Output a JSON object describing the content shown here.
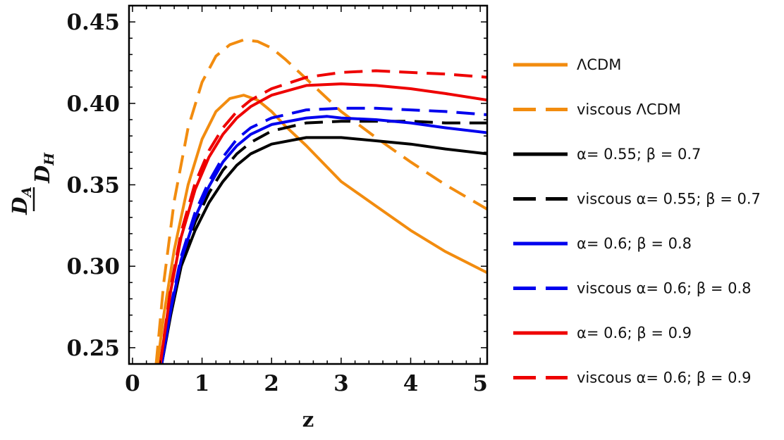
{
  "chart_data": {
    "type": "line",
    "xlabel": "z",
    "ylabel_numerator": "D",
    "ylabel_numerator_sub": "A",
    "ylabel_denominator": "D",
    "ylabel_denominator_sub": "H",
    "xlim": [
      -0.05,
      5.1
    ],
    "ylim": [
      0.24,
      0.46
    ],
    "x_ticks": [
      "0",
      "1",
      "2",
      "3",
      "4",
      "5"
    ],
    "y_ticks": [
      "0.25",
      "0.30",
      "0.35",
      "0.40",
      "0.45"
    ],
    "legend_position": "right",
    "grid": false,
    "series": [
      {
        "name": "ΛCDM",
        "color": "#f28c0f",
        "dash": "solid",
        "x": [
          0.36,
          0.45,
          0.6,
          0.8,
          1.0,
          1.2,
          1.4,
          1.6,
          1.8,
          2.0,
          2.2,
          2.5,
          3.0,
          3.5,
          4.0,
          4.5,
          5.1
        ],
        "y": [
          0.24,
          0.27,
          0.31,
          0.35,
          0.378,
          0.395,
          0.403,
          0.405,
          0.402,
          0.395,
          0.386,
          0.374,
          0.352,
          0.337,
          0.322,
          0.309,
          0.296
        ]
      },
      {
        "name": "viscous ΛCDM",
        "color": "#f28c0f",
        "dash": "dashed",
        "x": [
          0.34,
          0.45,
          0.6,
          0.8,
          1.0,
          1.2,
          1.4,
          1.6,
          1.8,
          2.0,
          2.2,
          2.5,
          3.0,
          3.5,
          4.0,
          4.5,
          5.1
        ],
        "y": [
          0.24,
          0.29,
          0.34,
          0.385,
          0.413,
          0.429,
          0.436,
          0.439,
          0.438,
          0.434,
          0.427,
          0.415,
          0.395,
          0.379,
          0.364,
          0.35,
          0.335
        ]
      },
      {
        "name": "α= 0.55; β = 0.7",
        "color": "#000000",
        "dash": "solid",
        "x": [
          0.42,
          0.55,
          0.7,
          0.9,
          1.1,
          1.3,
          1.5,
          1.7,
          2.0,
          2.5,
          3.0,
          3.5,
          4.0,
          4.5,
          5.1
        ],
        "y": [
          0.24,
          0.27,
          0.3,
          0.322,
          0.339,
          0.352,
          0.362,
          0.369,
          0.375,
          0.379,
          0.379,
          0.377,
          0.375,
          0.372,
          0.369
        ]
      },
      {
        "name": "viscous α= 0.55; β = 0.7",
        "color": "#000000",
        "dash": "dashed",
        "x": [
          0.42,
          0.55,
          0.7,
          0.9,
          1.1,
          1.3,
          1.5,
          1.7,
          2.0,
          2.5,
          3.0,
          3.5,
          4.0,
          4.5,
          5.1
        ],
        "y": [
          0.24,
          0.272,
          0.302,
          0.327,
          0.345,
          0.359,
          0.369,
          0.376,
          0.383,
          0.388,
          0.389,
          0.389,
          0.389,
          0.388,
          0.388
        ]
      },
      {
        "name": "α= 0.6; β = 0.8",
        "color": "#0000ee",
        "dash": "solid",
        "x": [
          0.42,
          0.55,
          0.7,
          0.9,
          1.1,
          1.3,
          1.5,
          1.7,
          2.0,
          2.5,
          2.8,
          3.0,
          3.5,
          4.0,
          4.5,
          5.1
        ],
        "y": [
          0.24,
          0.273,
          0.304,
          0.33,
          0.349,
          0.364,
          0.374,
          0.381,
          0.387,
          0.391,
          0.392,
          0.391,
          0.39,
          0.388,
          0.385,
          0.382
        ]
      },
      {
        "name": "viscous α= 0.6; β = 0.8",
        "color": "#0000ee",
        "dash": "dashed",
        "x": [
          0.42,
          0.55,
          0.7,
          0.9,
          1.1,
          1.3,
          1.5,
          1.7,
          2.0,
          2.5,
          3.0,
          3.5,
          4.0,
          4.5,
          5.1
        ],
        "y": [
          0.24,
          0.275,
          0.306,
          0.333,
          0.352,
          0.367,
          0.378,
          0.385,
          0.391,
          0.396,
          0.397,
          0.397,
          0.396,
          0.395,
          0.393
        ]
      },
      {
        "name": "α= 0.6; β = 0.9",
        "color": "#ee0000",
        "dash": "solid",
        "x": [
          0.4,
          0.55,
          0.7,
          0.9,
          1.1,
          1.3,
          1.5,
          1.7,
          2.0,
          2.5,
          3.0,
          3.5,
          4.0,
          4.5,
          5.1
        ],
        "y": [
          0.24,
          0.285,
          0.318,
          0.347,
          0.367,
          0.381,
          0.391,
          0.398,
          0.405,
          0.411,
          0.412,
          0.411,
          0.409,
          0.406,
          0.402
        ]
      },
      {
        "name": "viscous α= 0.6; β = 0.9",
        "color": "#ee0000",
        "dash": "dashed",
        "x": [
          0.4,
          0.55,
          0.7,
          0.9,
          1.1,
          1.3,
          1.5,
          1.7,
          2.0,
          2.5,
          3.0,
          3.5,
          4.0,
          4.5,
          5.1
        ],
        "y": [
          0.24,
          0.287,
          0.321,
          0.351,
          0.371,
          0.385,
          0.395,
          0.402,
          0.409,
          0.416,
          0.419,
          0.42,
          0.419,
          0.418,
          0.416
        ]
      }
    ]
  }
}
